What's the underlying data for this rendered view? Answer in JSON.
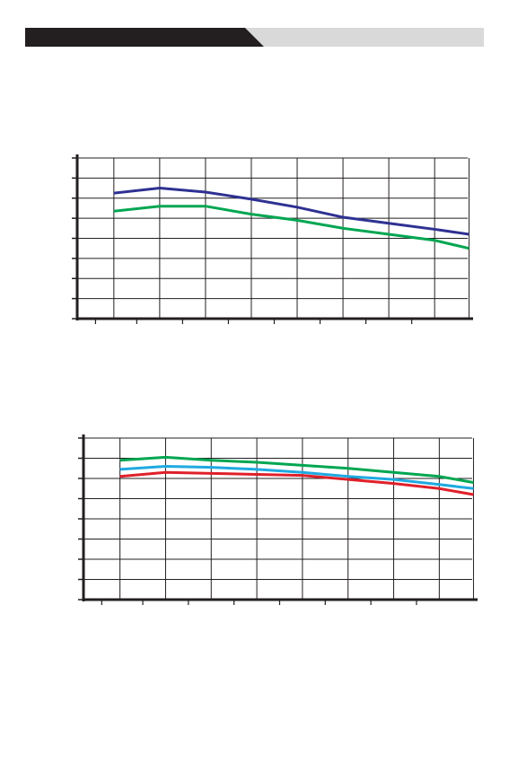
{
  "chart_data": [
    {
      "type": "line",
      "x": [
        1,
        2,
        3,
        4,
        5,
        6,
        7,
        8,
        8.75
      ],
      "xlim": [
        0.2,
        8.8
      ],
      "xticks": [
        1,
        2,
        3,
        4,
        5,
        6,
        7,
        8,
        8.75
      ],
      "ylim": [
        0,
        8
      ],
      "yticks": [
        0,
        1,
        2,
        3,
        4,
        5,
        6,
        7,
        8
      ],
      "grid": true,
      "series": [
        {
          "color": "#2e3192",
          "values": [
            6.25,
            6.5,
            6.3,
            5.95,
            5.55,
            5.05,
            4.75,
            4.45,
            4.2
          ]
        },
        {
          "color": "#00a651",
          "values": [
            5.35,
            5.6,
            5.6,
            5.2,
            4.9,
            4.5,
            4.2,
            3.9,
            3.5
          ]
        }
      ]
    },
    {
      "type": "line",
      "x": [
        1,
        2,
        3,
        4,
        5,
        6,
        7,
        8,
        8.75
      ],
      "xlim": [
        0.2,
        8.8
      ],
      "xticks": [
        1,
        2,
        3,
        4,
        5,
        6,
        7,
        8,
        8.75
      ],
      "ylim": [
        0,
        8
      ],
      "yticks": [
        0,
        1,
        2,
        3,
        4,
        5,
        6,
        7,
        8
      ],
      "grid": true,
      "series": [
        {
          "color": "#00a651",
          "values": [
            6.9,
            7.05,
            6.9,
            6.8,
            6.65,
            6.5,
            6.3,
            6.1,
            5.8
          ]
        },
        {
          "color": "#1fa9e1",
          "values": [
            6.45,
            6.6,
            6.55,
            6.45,
            6.3,
            6.1,
            5.95,
            5.7,
            5.5
          ]
        },
        {
          "color": "#e0202a",
          "values": [
            6.1,
            6.3,
            6.25,
            6.2,
            6.15,
            5.95,
            5.75,
            5.5,
            5.2
          ]
        }
      ]
    }
  ]
}
